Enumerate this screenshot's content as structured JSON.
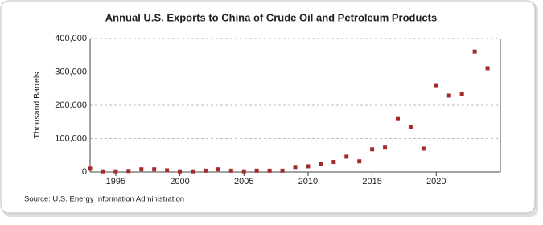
{
  "chart_data": {
    "type": "scatter",
    "title": "Annual U.S. Exports to China of Crude Oil and Petroleum Products",
    "y_label": "Thousand Barrels",
    "source": "Source: U.S. Energy Information Administration",
    "x": [
      1993,
      1994,
      1995,
      1996,
      1997,
      1998,
      1999,
      2000,
      2001,
      2002,
      2003,
      2004,
      2005,
      2006,
      2007,
      2008,
      2009,
      2010,
      2011,
      2012,
      2013,
      2014,
      2015,
      2016,
      2017,
      2018,
      2019,
      2020,
      2021,
      2022,
      2023,
      2024
    ],
    "series": [
      {
        "color": "#a52a2a",
        "values": [
          10000,
          2000,
          2000,
          3000,
          8000,
          8000,
          5000,
          2000,
          2000,
          4000,
          8000,
          4000,
          2000,
          4000,
          4000,
          4000,
          15000,
          17000,
          24000,
          30000,
          46000,
          32000,
          68000,
          73000,
          161000,
          135000,
          70000,
          260000,
          229000,
          233000,
          361000,
          311000
        ]
      }
    ],
    "xlim": [
      1993,
      2025
    ],
    "xticks": [
      1995,
      2000,
      2005,
      2010,
      2015,
      2020
    ],
    "ylim": [
      0,
      400000
    ],
    "yticks": [
      0,
      {
        "value": 100000,
        "label": "100,000"
      },
      {
        "value": 200000,
        "label": "200,000"
      },
      {
        "value": 300000,
        "label": "300,000"
      },
      {
        "value": 400000,
        "label": "400,000"
      }
    ],
    "grid": true
  }
}
